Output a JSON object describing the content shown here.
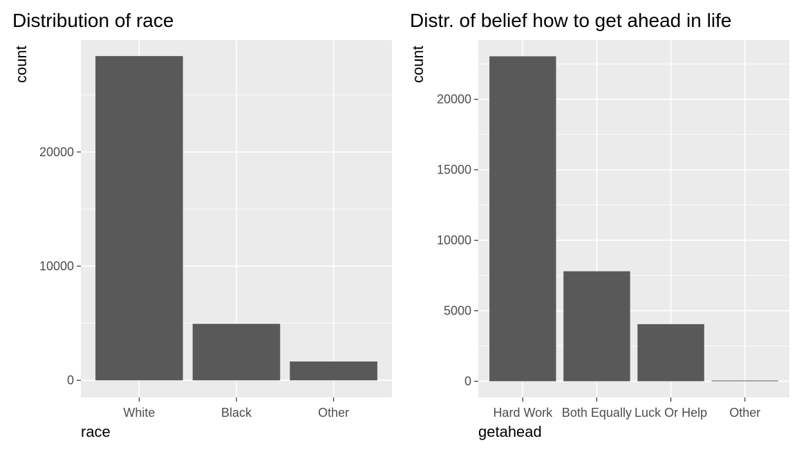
{
  "chart_data": [
    {
      "type": "bar",
      "title": "Distribution of race",
      "xlabel": "race",
      "ylabel": "count",
      "categories": [
        "White",
        "Black",
        "Other"
      ],
      "values": [
        28400,
        4950,
        1650
      ],
      "ylim": [
        -1500,
        29800
      ],
      "yticks": [
        0,
        10000,
        20000
      ],
      "ytick_labels": [
        "0",
        "10000",
        "20000"
      ],
      "grid": true,
      "bar_color": "#595959",
      "panel_color": "#ebebeb"
    },
    {
      "type": "bar",
      "title": "Distr. of belief how to get ahead in life",
      "xlabel": "getahead",
      "ylabel": "count",
      "categories": [
        "Hard Work",
        "Both Equally",
        "Luck Or Help",
        "Other"
      ],
      "values": [
        23050,
        7800,
        4050,
        50
      ],
      "ylim": [
        -1150,
        24200
      ],
      "yticks": [
        0,
        5000,
        10000,
        15000,
        20000
      ],
      "ytick_labels": [
        "0",
        "5000",
        "10000",
        "15000",
        "20000"
      ],
      "grid": true,
      "bar_color": "#595959",
      "panel_color": "#ebebeb"
    }
  ]
}
